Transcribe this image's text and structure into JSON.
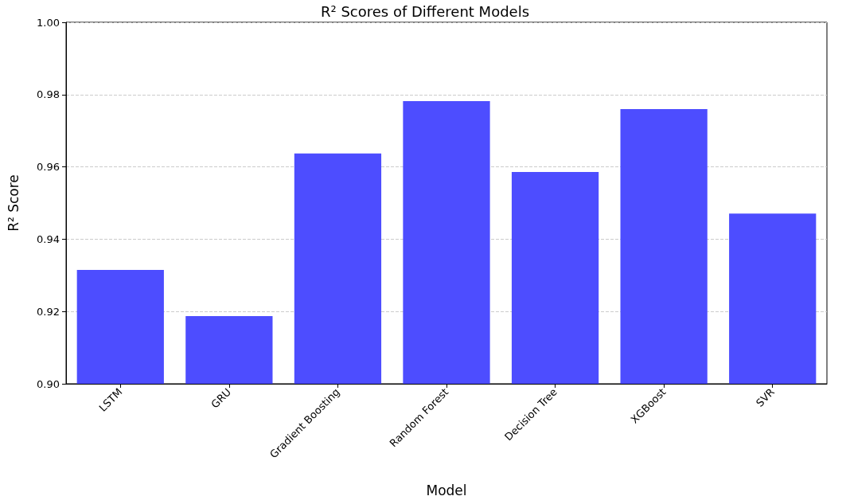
{
  "chart_data": {
    "type": "bar",
    "title": "R² Scores of Different Models",
    "xlabel": "Model",
    "ylabel": "R² Score",
    "categories": [
      "LSTM",
      "GRU",
      "Gradient Boosting",
      "Random Forest",
      "Decision Tree",
      "XGBoost",
      "SVR"
    ],
    "values": [
      0.9315,
      0.9187,
      0.9637,
      0.9782,
      0.9586,
      0.976,
      0.9471
    ],
    "color": "#4d4dff",
    "ylim": [
      0.9,
      1.0
    ],
    "yticks": [
      {
        "value": 0.9,
        "label": "0.90"
      },
      0.92,
      0.94,
      0.96,
      0.98,
      {
        "value": 1.0,
        "label": "1.00"
      }
    ],
    "grid": "y",
    "line_style": "dashed"
  }
}
